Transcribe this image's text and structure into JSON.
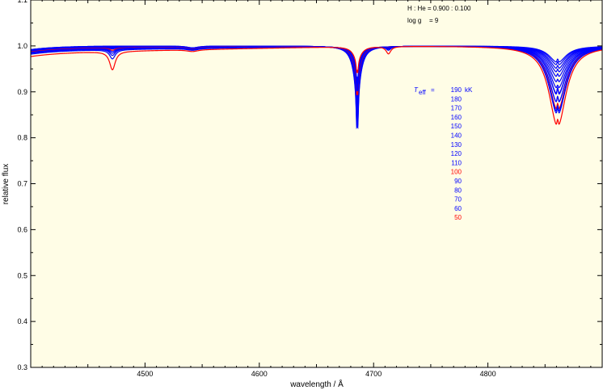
{
  "chart_data": {
    "type": "line",
    "title": "",
    "xlabel": "wavelength / Å",
    "ylabel": "relative flux",
    "xlim": [
      4400,
      4900
    ],
    "ylim": [
      0.3,
      1.1
    ],
    "x_ticks": [
      4500,
      4600,
      4700,
      4800
    ],
    "y_ticks": [
      0.3,
      0.4,
      0.5,
      0.6,
      0.7,
      0.8,
      0.9,
      1.0,
      1.1
    ],
    "x_tick_labels": [
      "4500",
      "4600",
      "4700",
      "4800"
    ],
    "y_tick_labels": [
      "0.3",
      "0.4",
      "0.5",
      "0.6",
      "0.7",
      "0.8",
      "0.9",
      "1.0",
      "1.1"
    ],
    "grid": false,
    "annotations": {
      "composition": "H : He = 0.900 : 0.100",
      "logg_label": "log g",
      "logg_value": "= 9"
    },
    "legend": {
      "placement": "right",
      "label": "T",
      "label_sub": "eff",
      "label_eq": "=",
      "unit": "kK"
    },
    "series_style": {
      "hot_color": "#0000ff",
      "cool_color": "#ff0000"
    },
    "series": [
      {
        "name": "190",
        "color": "#0000ff",
        "heii4686_depth": 0.22,
        "hbeta_depth": 0.036,
        "hei4471_depth": 0.0,
        "base": 1.0
      },
      {
        "name": "180",
        "color": "#0000ff",
        "heii4686_depth": 0.21,
        "hbeta_depth": 0.042,
        "hei4471_depth": 0.0,
        "base": 1.0
      },
      {
        "name": "170",
        "color": "#0000ff",
        "heii4686_depth": 0.2,
        "hbeta_depth": 0.05,
        "hei4471_depth": 0.0,
        "base": 0.999
      },
      {
        "name": "160",
        "color": "#0000ff",
        "heii4686_depth": 0.19,
        "hbeta_depth": 0.058,
        "hei4471_depth": 0.0,
        "base": 0.999
      },
      {
        "name": "150",
        "color": "#0000ff",
        "heii4686_depth": 0.18,
        "hbeta_depth": 0.068,
        "hei4471_depth": 0.0,
        "base": 0.999
      },
      {
        "name": "140",
        "color": "#0000ff",
        "heii4686_depth": 0.17,
        "hbeta_depth": 0.08,
        "hei4471_depth": 0.0,
        "base": 0.998
      },
      {
        "name": "130",
        "color": "#0000ff",
        "heii4686_depth": 0.16,
        "hbeta_depth": 0.093,
        "hei4471_depth": 0.001,
        "base": 0.998
      },
      {
        "name": "120",
        "color": "#0000ff",
        "heii4686_depth": 0.15,
        "hbeta_depth": 0.108,
        "hei4471_depth": 0.002,
        "base": 0.997
      },
      {
        "name": "110",
        "color": "#0000ff",
        "heii4686_depth": 0.14,
        "hbeta_depth": 0.125,
        "hei4471_depth": 0.003,
        "base": 0.996
      },
      {
        "name": "100",
        "color": "#ff0000",
        "heii4686_depth": 0.13,
        "hbeta_depth": 0.14,
        "hei4471_depth": 0.005,
        "base": 0.995
      },
      {
        "name": "90",
        "color": "#0000ff",
        "heii4686_depth": 0.12,
        "hbeta_depth": 0.106,
        "hei4471_depth": 0.007,
        "base": 0.994
      },
      {
        "name": "80",
        "color": "#0000ff",
        "heii4686_depth": 0.11,
        "hbeta_depth": 0.125,
        "hei4471_depth": 0.01,
        "base": 0.993
      },
      {
        "name": "70",
        "color": "#0000ff",
        "heii4686_depth": 0.1,
        "hbeta_depth": 0.145,
        "hei4471_depth": 0.014,
        "base": 0.992
      },
      {
        "name": "60",
        "color": "#0000ff",
        "heii4686_depth": 0.09,
        "hbeta_depth": 0.15,
        "hei4471_depth": 0.02,
        "base": 0.99
      },
      {
        "name": "50",
        "color": "#ff0000",
        "heii4686_depth": 0.07,
        "hbeta_depth": 0.175,
        "hei4471_depth": 0.04,
        "base": 0.985
      }
    ]
  }
}
